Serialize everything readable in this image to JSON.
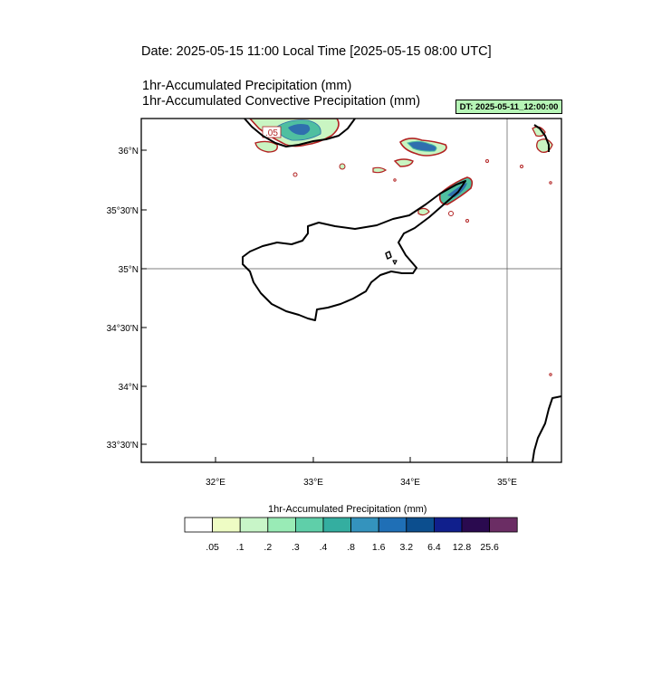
{
  "header": {
    "date_line": "Date: 2025-05-15  11:00 Local Time [2025-05-15  08:00 UTC]",
    "title_1": "1hr-Accumulated Precipitation   (mm)",
    "title_2": "1hr-Accumulated Convective Precipitation   (mm)",
    "dt_badge": "DT: 2025-05-11_12:00:00"
  },
  "map": {
    "lat_labels": [
      "36°N",
      "35°30'N",
      "35°N",
      "34°30'N",
      "34°N",
      "33°30'N"
    ],
    "lon_labels": [
      "32°E",
      "33°E",
      "34°E",
      "35°E"
    ],
    "contour_label": ".05",
    "colors": {
      "coast": "#000000",
      "contour_line": "#b22222",
      "precip_light": "#c9f5c2",
      "precip_mid": "#4fbfa0",
      "precip_heavy": "#2f6fae"
    }
  },
  "colorbar": {
    "title": "1hr-Accumulated Precipitation  (mm)",
    "labels": [
      ".05",
      ".1",
      ".2",
      ".3",
      ".4",
      ".8",
      "1.6",
      "3.2",
      "6.4",
      "12.8",
      "25.6"
    ],
    "colors": [
      "#ffffff",
      "#eefcc4",
      "#c8f5c8",
      "#99ebb6",
      "#5fcfa9",
      "#34aea0",
      "#3493bd",
      "#1f6fb6",
      "#0c4e8e",
      "#101f8c",
      "#2a0a4f",
      "#6b2d64"
    ]
  }
}
